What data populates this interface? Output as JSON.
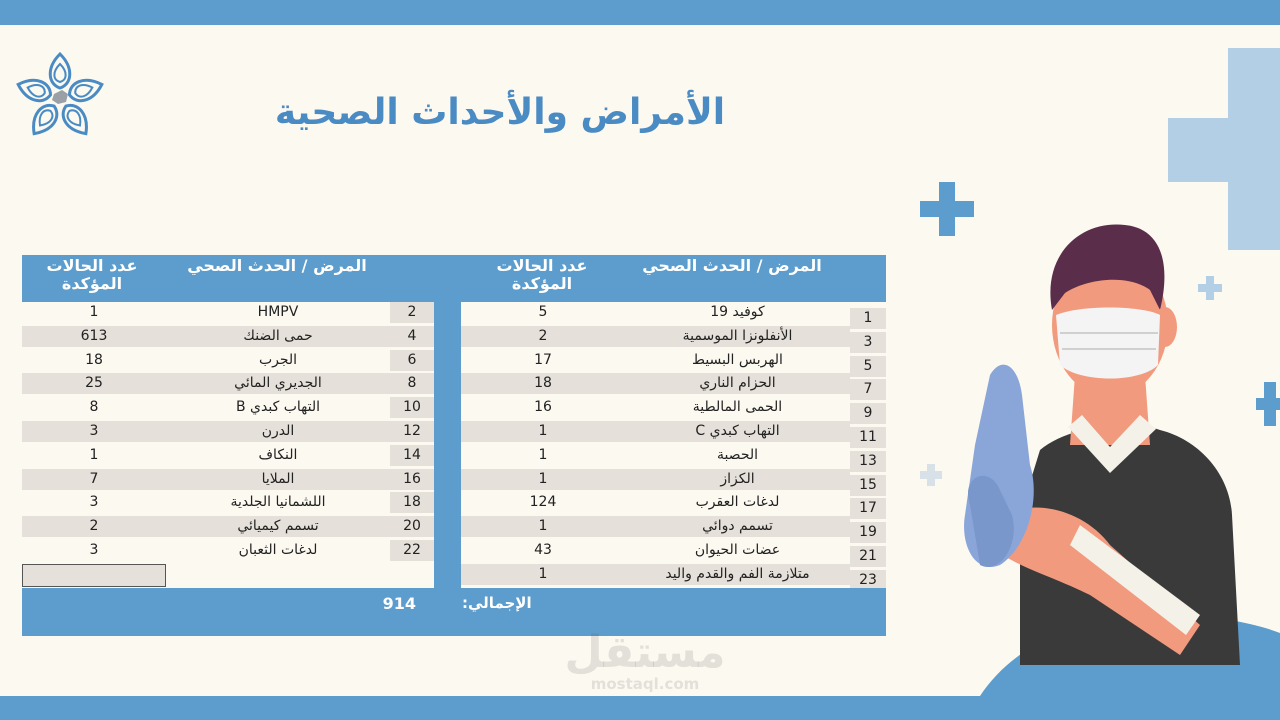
{
  "title": "الأمراض والأحداث الصحية",
  "colors": {
    "accent": "#5c9dcd",
    "title": "#4a8bc4",
    "row_shade": "#e5e0d9",
    "background": "#fcf9f1"
  },
  "table": {
    "headers": {
      "left_count": "عدد الحالات المؤكدة",
      "left_disease": "المرض / الحدث الصحي",
      "right_count": "عدد الحالات المؤكدة",
      "right_disease": "المرض / الحدث الصحي"
    },
    "left_rows": [
      {
        "num": "2",
        "name": "HMPV",
        "count": "1"
      },
      {
        "num": "4",
        "name": "حمى الضنك",
        "count": "613"
      },
      {
        "num": "6",
        "name": "الجرب",
        "count": "18"
      },
      {
        "num": "8",
        "name": "الجديري المائي",
        "count": "25"
      },
      {
        "num": "10",
        "name": "التهاب كبدي B",
        "count": "8"
      },
      {
        "num": "12",
        "name": "الدرن",
        "count": "3"
      },
      {
        "num": "14",
        "name": "النكاف",
        "count": "1"
      },
      {
        "num": "16",
        "name": "الملايا",
        "count": "7"
      },
      {
        "num": "18",
        "name": "اللشمانيا الجلدية",
        "count": "3"
      },
      {
        "num": "20",
        "name": "تسمم كيميائي",
        "count": "2"
      },
      {
        "num": "22",
        "name": "لدغات الثعبان",
        "count": "3"
      }
    ],
    "right_rows": [
      {
        "num": "1",
        "name": "كوفيد 19",
        "count": "5"
      },
      {
        "num": "3",
        "name": "الأنفلونزا الموسمية",
        "count": "2"
      },
      {
        "num": "5",
        "name": "الهربس البسيط",
        "count": "17"
      },
      {
        "num": "7",
        "name": "الحزام الناري",
        "count": "18"
      },
      {
        "num": "9",
        "name": "الحمى المالطية",
        "count": "16"
      },
      {
        "num": "11",
        "name": "التهاب كبدي C",
        "count": "1"
      },
      {
        "num": "13",
        "name": "الحصبة",
        "count": "1"
      },
      {
        "num": "15",
        "name": "الكزاز",
        "count": "1"
      },
      {
        "num": "17",
        "name": "لدغات العقرب",
        "count": "124"
      },
      {
        "num": "19",
        "name": "تسمم دوائي",
        "count": "1"
      },
      {
        "num": "21",
        "name": "عضات الحيوان",
        "count": "43"
      },
      {
        "num": "23",
        "name": "متلازمة الفم والقدم واليد",
        "count": "1"
      }
    ],
    "total_label": "الإجمالي:",
    "total_value": "914"
  },
  "watermark": {
    "arabic": "مستقل",
    "latin": "mostaql.com"
  },
  "icons": {
    "logo": "star-flower-logo-icon",
    "doctor": "doctor-illustration",
    "crosses": "medical-cross-icon"
  }
}
